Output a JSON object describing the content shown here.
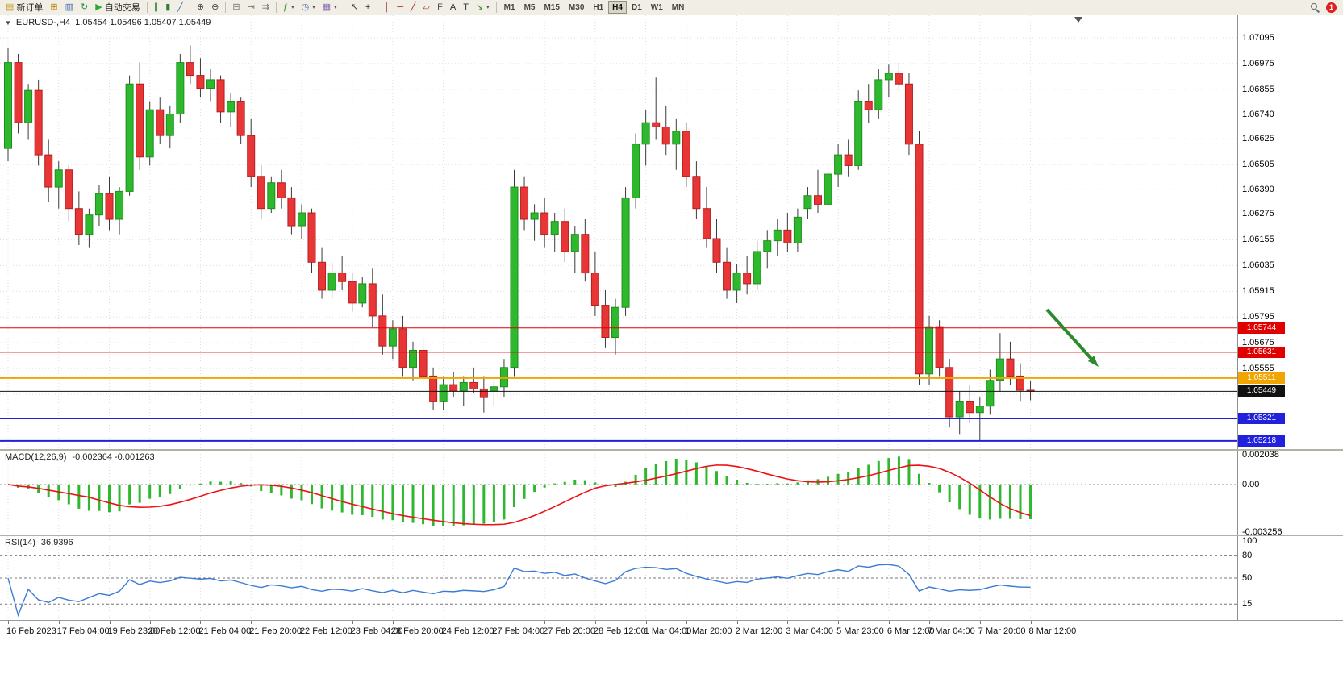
{
  "toolbar": {
    "caret_glyph": "▾",
    "notification_count": "1",
    "timeframes": [
      "M1",
      "M5",
      "M15",
      "M30",
      "H1",
      "H4",
      "D1",
      "W1",
      "MN"
    ],
    "active_timeframe": "H4",
    "items": [
      {
        "type": "button",
        "name": "new-order-button",
        "icon": "new-order-icon",
        "glyph": "▤",
        "color": "#c9a13b",
        "label": "新订单"
      },
      {
        "type": "button",
        "name": "charts-button",
        "icon": "charts-icon",
        "glyph": "⊞",
        "color": "#b8860b"
      },
      {
        "type": "button",
        "name": "profiles-button",
        "icon": "profiles-icon",
        "glyph": "▥",
        "color": "#4a6fb0"
      },
      {
        "type": "button",
        "name": "refresh-button",
        "icon": "refresh-icon",
        "glyph": "↻",
        "color": "#2e8b57"
      },
      {
        "type": "button",
        "name": "auto-trading-button",
        "icon": "play-icon",
        "glyph": "▶",
        "color": "#2eaa2e",
        "label": "自动交易"
      },
      {
        "type": "sep"
      },
      {
        "type": "button",
        "name": "bar-chart-button",
        "icon": "bar-chart-icon",
        "glyph": "∥",
        "color": "#2e7d32"
      },
      {
        "type": "button",
        "name": "candlestick-chart-button",
        "icon": "candlestick-icon",
        "glyph": "▮",
        "color": "#2e7d32"
      },
      {
        "type": "button",
        "name": "line-chart-button",
        "icon": "line-chart-icon",
        "glyph": "╱",
        "color": "#3a6fb0"
      },
      {
        "type": "sep"
      },
      {
        "type": "button",
        "name": "zoom-in-button",
        "icon": "zoom-in-icon",
        "glyph": "⊕",
        "color": "#444444"
      },
      {
        "type": "button",
        "name": "zoom-out-button",
        "icon": "zoom-out-icon",
        "glyph": "⊖",
        "color": "#444444"
      },
      {
        "type": "sep"
      },
      {
        "type": "button",
        "name": "tile-windows-button",
        "icon": "tile-windows-icon",
        "glyph": "⊟",
        "color": "#777777"
      },
      {
        "type": "button",
        "name": "auto-scroll-button",
        "icon": "auto-scroll-icon",
        "glyph": "⇥",
        "color": "#777777"
      },
      {
        "type": "button",
        "name": "chart-shift-button",
        "icon": "chart-shift-icon",
        "glyph": "⇉",
        "color": "#777777"
      },
      {
        "type": "sep"
      },
      {
        "type": "button",
        "name": "indicators-button",
        "icon": "indicators-icon",
        "glyph": "ƒ",
        "color": "#2a8a2a",
        "caret": true
      },
      {
        "type": "button",
        "name": "periods-button",
        "icon": "periods-icon",
        "glyph": "◷",
        "color": "#4a6fb0",
        "caret": true
      },
      {
        "type": "button",
        "name": "templates-button",
        "icon": "templates-icon",
        "glyph": "▦",
        "color": "#8a6fb0",
        "caret": true
      },
      {
        "type": "sep"
      },
      {
        "type": "button",
        "name": "cursor-button",
        "icon": "cursor-icon",
        "glyph": "↖",
        "color": "#333333"
      },
      {
        "type": "button",
        "name": "crosshair-button",
        "icon": "crosshair-icon",
        "glyph": "+",
        "color": "#333333"
      },
      {
        "type": "sep"
      },
      {
        "type": "button",
        "name": "vertical-line-button",
        "icon": "vertical-line-icon",
        "glyph": "│",
        "color": "#aa2222"
      },
      {
        "type": "button",
        "name": "horizontal-line-button",
        "icon": "horizontal-line-icon",
        "glyph": "─",
        "color": "#aa2222"
      },
      {
        "type": "button",
        "name": "trendline-button",
        "icon": "trendline-icon",
        "glyph": "╱",
        "color": "#aa2222"
      },
      {
        "type": "button",
        "name": "channel-button",
        "icon": "channel-icon",
        "glyph": "▱",
        "color": "#aa2222"
      },
      {
        "type": "button",
        "name": "fibonacci-button",
        "icon": "fibonacci-icon",
        "glyph": "F",
        "color": "#555555"
      },
      {
        "type": "button",
        "name": "text-button",
        "icon": "text-icon",
        "glyph": "A",
        "color": "#333333"
      },
      {
        "type": "button",
        "name": "text-label-button",
        "icon": "text-label-icon",
        "glyph": "T",
        "color": "#333333"
      },
      {
        "type": "button",
        "name": "arrow-tools-button",
        "icon": "arrow-tools-icon",
        "glyph": "↘",
        "color": "#2a8a2a",
        "caret": true
      },
      {
        "type": "sep"
      }
    ]
  },
  "chart_header": {
    "dropdown_glyph": "▼",
    "symbol": "EURUSD-,H4",
    "ohlc": "1.05454 1.05496 1.05407 1.05449"
  },
  "colors": {
    "up": "#2eb82e",
    "up_border": "#1d8f1d",
    "down": "#e83535",
    "down_border": "#b51f1f",
    "wick": "#3a3a3a",
    "grid": "#dcdcdc",
    "macd_hist": "#2eb82e",
    "macd_signal": "#ee1111",
    "rsi_line": "#3b7bd4",
    "arrow": "#2d8a2d"
  },
  "chart_data": {
    "type": "candlestick",
    "symbol": "EURUSD-",
    "timeframe": "H4",
    "price_axis": {
      "top": 1.072,
      "bottom": 1.0518,
      "labels": [
        "1.07095",
        "1.06975",
        "1.06855",
        "1.06740",
        "1.06625",
        "1.06505",
        "1.06390",
        "1.06275",
        "1.06155",
        "1.06035",
        "1.05915",
        "1.05795",
        "1.05675",
        "1.05555",
        "1.05435"
      ]
    },
    "levels": [
      {
        "price": 1.05744,
        "label": "1.05744",
        "color": "#e00000",
        "width": 1,
        "kind": "resistance"
      },
      {
        "price": 1.05631,
        "label": "1.05631",
        "color": "#e00000",
        "width": 1,
        "kind": "resistance"
      },
      {
        "price": 1.05511,
        "label": "1.05511",
        "color": "#f0a500",
        "width": 2,
        "kind": "pivot"
      },
      {
        "price": 1.05449,
        "label": "1.05449",
        "color": "#111111",
        "width": 1,
        "kind": "bid"
      },
      {
        "price": 1.05321,
        "label": "1.05321",
        "color": "#2020dd",
        "width": 1,
        "kind": "support"
      },
      {
        "price": 1.05218,
        "label": "1.05218",
        "color": "#2020dd",
        "width": 2,
        "kind": "support"
      }
    ],
    "candles": [
      [
        1.0658,
        1.0705,
        1.0652,
        1.0698
      ],
      [
        1.0698,
        1.0702,
        1.0665,
        1.067
      ],
      [
        1.067,
        1.0688,
        1.0662,
        1.0685
      ],
      [
        1.0685,
        1.069,
        1.065,
        1.0655
      ],
      [
        1.0655,
        1.0662,
        1.0633,
        1.064
      ],
      [
        1.064,
        1.0652,
        1.063,
        1.0648
      ],
      [
        1.0648,
        1.065,
        1.0624,
        1.063
      ],
      [
        1.063,
        1.0638,
        1.0613,
        1.0618
      ],
      [
        1.0618,
        1.063,
        1.0612,
        1.0627
      ],
      [
        1.0627,
        1.0641,
        1.0622,
        1.0637
      ],
      [
        1.0637,
        1.0645,
        1.062,
        1.0625
      ],
      [
        1.0625,
        1.064,
        1.0618,
        1.0638
      ],
      [
        1.0638,
        1.0692,
        1.0636,
        1.0688
      ],
      [
        1.0688,
        1.0698,
        1.0648,
        1.0654
      ],
      [
        1.0654,
        1.068,
        1.065,
        1.0676
      ],
      [
        1.0676,
        1.0682,
        1.066,
        1.0664
      ],
      [
        1.0664,
        1.0678,
        1.0658,
        1.0674
      ],
      [
        1.0674,
        1.0702,
        1.067,
        1.0698
      ],
      [
        1.0698,
        1.0706,
        1.0688,
        1.0692
      ],
      [
        1.0692,
        1.07,
        1.0682,
        1.0686
      ],
      [
        1.0686,
        1.0695,
        1.068,
        1.069
      ],
      [
        1.069,
        1.0692,
        1.067,
        1.0675
      ],
      [
        1.0675,
        1.0684,
        1.0668,
        1.068
      ],
      [
        1.068,
        1.0682,
        1.066,
        1.0664
      ],
      [
        1.0664,
        1.0672,
        1.064,
        1.0645
      ],
      [
        1.0645,
        1.065,
        1.0625,
        1.063
      ],
      [
        1.063,
        1.0645,
        1.0628,
        1.0642
      ],
      [
        1.0642,
        1.0648,
        1.063,
        1.0635
      ],
      [
        1.0635,
        1.064,
        1.0618,
        1.0622
      ],
      [
        1.0622,
        1.0632,
        1.0616,
        1.0628
      ],
      [
        1.0628,
        1.063,
        1.06,
        1.0605
      ],
      [
        1.0605,
        1.0612,
        1.0588,
        1.0592
      ],
      [
        1.0592,
        1.0605,
        1.0588,
        1.06
      ],
      [
        1.06,
        1.0608,
        1.0592,
        1.0596
      ],
      [
        1.0596,
        1.06,
        1.0582,
        1.0586
      ],
      [
        1.0586,
        1.0598,
        1.0584,
        1.0595
      ],
      [
        1.0595,
        1.0602,
        1.0575,
        1.058
      ],
      [
        1.058,
        1.059,
        1.0562,
        1.0566
      ],
      [
        1.0566,
        1.0578,
        1.056,
        1.0574
      ],
      [
        1.0574,
        1.058,
        1.0552,
        1.0556
      ],
      [
        1.0556,
        1.0568,
        1.055,
        1.0564
      ],
      [
        1.0564,
        1.057,
        1.0548,
        1.0552
      ],
      [
        1.0552,
        1.0556,
        1.0536,
        1.054
      ],
      [
        1.054,
        1.0552,
        1.0536,
        1.0548
      ],
      [
        1.0548,
        1.0554,
        1.0542,
        1.0545
      ],
      [
        1.0545,
        1.0552,
        1.0538,
        1.0549
      ],
      [
        1.0549,
        1.0556,
        1.0544,
        1.0546
      ],
      [
        1.0546,
        1.0552,
        1.0535,
        1.0542
      ],
      [
        1.0545,
        1.055,
        1.0538,
        1.0547
      ],
      [
        1.0547,
        1.056,
        1.0542,
        1.0556
      ],
      [
        1.0556,
        1.0648,
        1.0552,
        1.064
      ],
      [
        1.064,
        1.0645,
        1.062,
        1.0625
      ],
      [
        1.0625,
        1.0632,
        1.0615,
        1.0628
      ],
      [
        1.0628,
        1.0635,
        1.0612,
        1.0618
      ],
      [
        1.0618,
        1.0628,
        1.061,
        1.0624
      ],
      [
        1.0624,
        1.063,
        1.0605,
        1.061
      ],
      [
        1.061,
        1.0622,
        1.06,
        1.0618
      ],
      [
        1.0618,
        1.0625,
        1.0596,
        1.06
      ],
      [
        1.06,
        1.061,
        1.058,
        1.0585
      ],
      [
        1.0585,
        1.0592,
        1.0565,
        1.057
      ],
      [
        1.057,
        1.0588,
        1.0562,
        1.0584
      ],
      [
        1.0584,
        1.064,
        1.058,
        1.0635
      ],
      [
        1.0635,
        1.0665,
        1.063,
        1.066
      ],
      [
        1.066,
        1.0676,
        1.065,
        1.067
      ],
      [
        1.067,
        1.0691,
        1.0662,
        1.0668
      ],
      [
        1.0668,
        1.0678,
        1.0655,
        1.066
      ],
      [
        1.066,
        1.0672,
        1.0648,
        1.0666
      ],
      [
        1.0666,
        1.067,
        1.064,
        1.0645
      ],
      [
        1.0645,
        1.0652,
        1.0625,
        1.063
      ],
      [
        1.063,
        1.064,
        1.0612,
        1.0616
      ],
      [
        1.0616,
        1.0625,
        1.06,
        1.0605
      ],
      [
        1.0605,
        1.0612,
        1.0588,
        1.0592
      ],
      [
        1.0592,
        1.0604,
        1.0586,
        1.06
      ],
      [
        1.06,
        1.0608,
        1.059,
        1.0595
      ],
      [
        1.0595,
        1.0615,
        1.0592,
        1.061
      ],
      [
        1.061,
        1.062,
        1.0602,
        1.0615
      ],
      [
        1.0615,
        1.0625,
        1.0608,
        1.062
      ],
      [
        1.062,
        1.0628,
        1.061,
        1.0614
      ],
      [
        1.0614,
        1.063,
        1.061,
        1.0626
      ],
      [
        1.063,
        1.064,
        1.0625,
        1.0636
      ],
      [
        1.0636,
        1.0648,
        1.0628,
        1.0632
      ],
      [
        1.0632,
        1.065,
        1.063,
        1.0646
      ],
      [
        1.0646,
        1.066,
        1.064,
        1.0655
      ],
      [
        1.0655,
        1.0662,
        1.0645,
        1.065
      ],
      [
        1.065,
        1.0685,
        1.0648,
        1.068
      ],
      [
        1.068,
        1.0688,
        1.067,
        1.0676
      ],
      [
        1.0676,
        1.0695,
        1.0672,
        1.069
      ],
      [
        1.069,
        1.0697,
        1.0682,
        1.0693
      ],
      [
        1.0693,
        1.0698,
        1.0685,
        1.0688
      ],
      [
        1.0688,
        1.0693,
        1.0655,
        1.066
      ],
      [
        1.066,
        1.0666,
        1.0548,
        1.0553
      ],
      [
        1.0553,
        1.058,
        1.0548,
        1.0575
      ],
      [
        1.0575,
        1.0578,
        1.0552,
        1.0556
      ],
      [
        1.0556,
        1.056,
        1.0528,
        1.0533
      ],
      [
        1.0533,
        1.0545,
        1.0525,
        1.054
      ],
      [
        1.054,
        1.0548,
        1.053,
        1.0535
      ],
      [
        1.0535,
        1.0542,
        1.0522,
        1.0538
      ],
      [
        1.0538,
        1.0555,
        1.0534,
        1.055
      ],
      [
        1.055,
        1.0572,
        1.0545,
        1.056
      ],
      [
        1.056,
        1.0568,
        1.0548,
        1.0552
      ],
      [
        1.0552,
        1.0558,
        1.054,
        1.05454
      ],
      [
        1.05454,
        1.05496,
        1.05407,
        1.05449
      ]
    ],
    "time_labels": [
      "16 Feb 2023",
      "17 Feb 04:00",
      "19 Feb 23:00",
      "20 Feb 12:00",
      "21 Feb 04:00",
      "21 Feb 20:00",
      "22 Feb 12:00",
      "23 Feb 04:00",
      "23 Feb 20:00",
      "24 Feb 12:00",
      "27 Feb 04:00",
      "27 Feb 20:00",
      "28 Feb 12:00",
      "1 Mar 04:00",
      "1 Mar 20:00",
      "2 Mar 12:00",
      "3 Mar 04:00",
      "5 Mar 23:00",
      "6 Mar 12:00",
      "7 Mar 04:00",
      "7 Mar 20:00",
      "8 Mar 12:00"
    ],
    "indicators": {
      "macd": {
        "name": "MACD(12,26,9)",
        "values": "-0.002364 -0.001263",
        "params": [
          12,
          26,
          9
        ],
        "axis_labels": [
          "0.002038",
          "0.00",
          "-0.003256"
        ]
      },
      "rsi": {
        "name": "RSI(14)",
        "value": "36.9396",
        "period": 14,
        "axis_labels": [
          "100",
          "80",
          "50",
          "15"
        ],
        "levels": [
          80,
          50,
          15
        ]
      }
    },
    "annotations": [
      {
        "type": "arrow",
        "direction": "down-right",
        "color": "#2d8a2d"
      }
    ]
  }
}
